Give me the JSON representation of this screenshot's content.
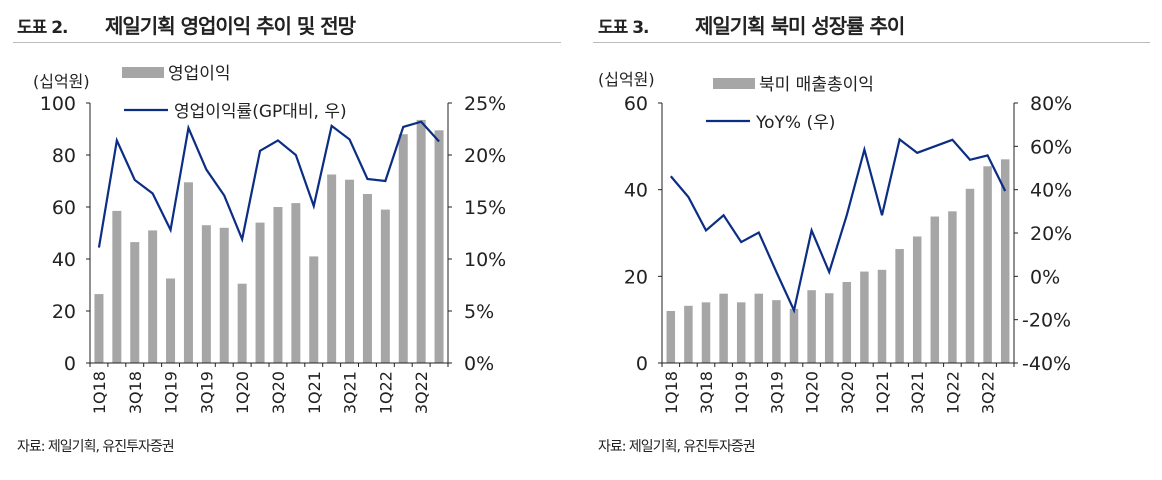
{
  "colors": {
    "bar": "#a6a6a6",
    "line": "#0b2d84",
    "axis": "#222222"
  },
  "chart_data": [
    {
      "type": "bar+line",
      "figure_number": "도표 2.",
      "title": "제일기획 영업이익 추이 및 전망",
      "unit_label": "(십억원)",
      "source": "자료: 제일기획, 유진투자증권",
      "categories": [
        "1Q18",
        "2Q18",
        "3Q18",
        "4Q18",
        "1Q19",
        "2Q19",
        "3Q19",
        "4Q19",
        "1Q20",
        "2Q20",
        "3Q20",
        "4Q20",
        "1Q21",
        "2Q21",
        "3Q21",
        "4Q21",
        "1Q22",
        "2Q22",
        "3Q22",
        "4Q22"
      ],
      "x_tick_labels": [
        "1Q18",
        "3Q18",
        "1Q19",
        "3Q19",
        "1Q20",
        "3Q20",
        "1Q21",
        "3Q21",
        "1Q22",
        "3Q22"
      ],
      "series": [
        {
          "name": "영업이익",
          "kind": "bar",
          "axis": "left",
          "values": [
            26.5,
            58.5,
            46.5,
            51,
            32.5,
            69.5,
            53,
            52,
            30.5,
            54,
            60,
            61.5,
            41,
            72.5,
            70.5,
            65,
            59,
            88,
            93.5,
            89.5
          ]
        },
        {
          "name": "영업이익률(GP대비, 우)",
          "kind": "line",
          "axis": "right",
          "values": [
            11.1,
            21.4,
            17.6,
            16.3,
            12.8,
            22.6,
            18.6,
            16.1,
            11.9,
            20.4,
            21.4,
            20.0,
            15.1,
            22.8,
            21.5,
            17.7,
            17.5,
            22.7,
            23.2,
            21.3
          ]
        }
      ],
      "ylim_left": [
        0,
        100
      ],
      "yticks_left": [
        "0",
        "20",
        "40",
        "60",
        "80",
        "100"
      ],
      "ylim_right": [
        0,
        25
      ],
      "yticks_right": [
        "0%",
        "5%",
        "10%",
        "15%",
        "20%",
        "25%"
      ],
      "legend": "top-left",
      "grid": false
    },
    {
      "type": "bar+line",
      "figure_number": "도표 3.",
      "title": "제일기획 북미 성장률 추이",
      "unit_label": "(십억원)",
      "source": "자료: 제일기획, 유진투자증권",
      "categories": [
        "1Q18",
        "2Q18",
        "3Q18",
        "4Q18",
        "1Q19",
        "2Q19",
        "3Q19",
        "4Q19",
        "1Q20",
        "2Q20",
        "3Q20",
        "4Q20",
        "1Q21",
        "2Q21",
        "3Q21",
        "4Q21",
        "1Q22",
        "2Q22",
        "3Q22",
        "4Q22"
      ],
      "x_tick_labels": [
        "1Q18",
        "3Q18",
        "1Q19",
        "3Q19",
        "1Q20",
        "3Q20",
        "1Q21",
        "3Q21",
        "1Q22",
        "3Q22"
      ],
      "series": [
        {
          "name": "북미 매출총이익",
          "kind": "bar",
          "axis": "left",
          "values": [
            12,
            13.2,
            14,
            16,
            14,
            16,
            14.5,
            12.5,
            16.8,
            16.1,
            18.7,
            21.1,
            21.5,
            26.3,
            29.2,
            33.8,
            35,
            40.2,
            45.4,
            47
          ]
        },
        {
          "name": "YoY% (우)",
          "kind": "line",
          "axis": "right",
          "values": [
            46.2,
            36.6,
            21.2,
            28.2,
            15.8,
            20.2,
            2,
            -15.7,
            21.2,
            2,
            28.3,
            58.5,
            28.2,
            63.2,
            57,
            60,
            63,
            53.8,
            55.8,
            39.4
          ]
        }
      ],
      "ylim_left": [
        0,
        60
      ],
      "yticks_left": [
        "0",
        "20",
        "40",
        "60"
      ],
      "ylim_right": [
        -40,
        80
      ],
      "yticks_right": [
        "-40%",
        "-20%",
        "0%",
        "20%",
        "40%",
        "60%",
        "80%"
      ],
      "legend": "top-left",
      "grid": false
    }
  ]
}
